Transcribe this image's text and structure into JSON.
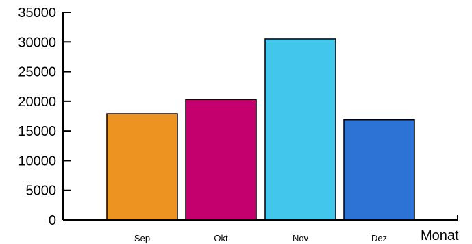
{
  "chart_data": {
    "type": "bar",
    "title": "",
    "xlabel": "Monat",
    "ylabel": "",
    "categories": [
      "Sep",
      "Okt",
      "Nov",
      "Dez"
    ],
    "values": [
      17900,
      20300,
      30500,
      16900
    ],
    "colors": [
      "#ED9322",
      "#C4006E",
      "#42C6EB",
      "#2D73D5"
    ],
    "ylim": [
      0,
      35000
    ],
    "yticks": [
      0,
      5000,
      10000,
      15000,
      20000,
      25000,
      30000,
      35000
    ],
    "ytick_labels": [
      "0",
      "5000",
      "10000",
      "15000",
      "20000",
      "25000",
      "30000",
      "35000"
    ],
    "grid": false,
    "legend": "none"
  }
}
